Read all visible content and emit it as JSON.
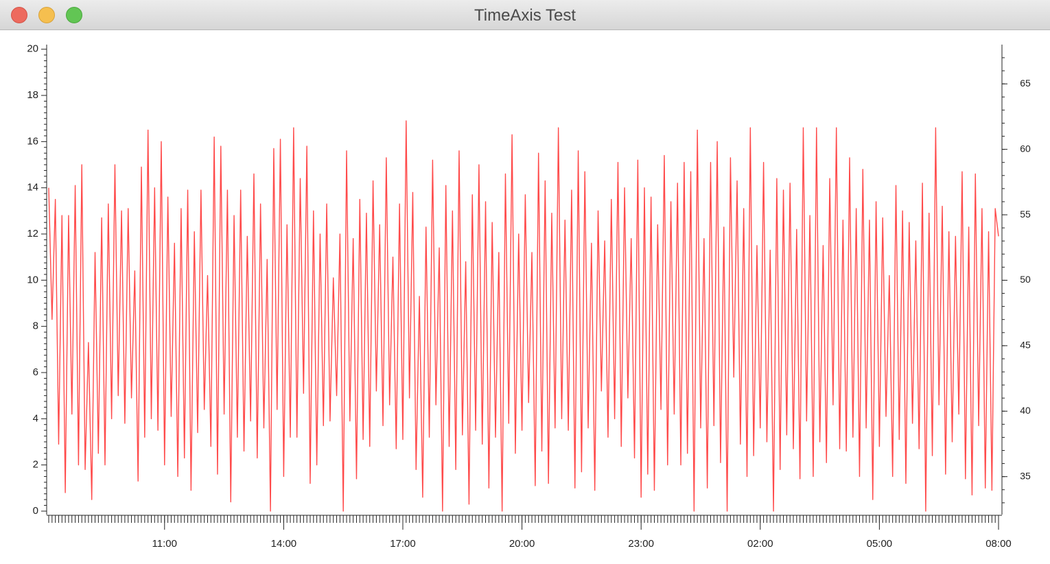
{
  "window_title": "TimeAxis Test",
  "chart_data": {
    "type": "line",
    "color": "#ff4a4a",
    "x": [
      "08:05",
      "08:10",
      "08:15",
      "08:20",
      "08:25",
      "08:30",
      "08:35",
      "08:40",
      "08:45",
      "08:50",
      "08:55",
      "09:00",
      "09:05",
      "09:10",
      "09:15",
      "09:20",
      "09:25",
      "09:30",
      "09:35",
      "09:40",
      "09:45",
      "09:50",
      "09:55",
      "10:00",
      "10:05",
      "10:10",
      "10:15",
      "10:20",
      "10:25",
      "10:30",
      "10:35",
      "10:40",
      "10:45",
      "10:50",
      "10:55",
      "11:00",
      "11:05",
      "11:10",
      "11:15",
      "11:20",
      "11:25",
      "11:30",
      "11:35",
      "11:40",
      "11:45",
      "11:50",
      "11:55",
      "12:00",
      "12:05",
      "12:10",
      "12:15",
      "12:20",
      "12:25",
      "12:30",
      "12:35",
      "12:40",
      "12:45",
      "12:50",
      "12:55",
      "13:00",
      "13:05",
      "13:10",
      "13:15",
      "13:20",
      "13:25",
      "13:30",
      "13:35",
      "13:40",
      "13:45",
      "13:50",
      "13:55",
      "14:00",
      "14:05",
      "14:10",
      "14:15",
      "14:20",
      "14:25",
      "14:30",
      "14:35",
      "14:40",
      "14:45",
      "14:50",
      "14:55",
      "15:00",
      "15:05",
      "15:10",
      "15:15",
      "15:20",
      "15:25",
      "15:30",
      "15:35",
      "15:40",
      "15:45",
      "15:50",
      "15:55",
      "16:00",
      "16:05",
      "16:10",
      "16:15",
      "16:20",
      "16:25",
      "16:30",
      "16:35",
      "16:40",
      "16:45",
      "16:50",
      "16:55",
      "17:00",
      "17:05",
      "17:10",
      "17:15",
      "17:20",
      "17:25",
      "17:30",
      "17:35",
      "17:40",
      "17:45",
      "17:50",
      "17:55",
      "18:00",
      "18:05",
      "18:10",
      "18:15",
      "18:20",
      "18:25",
      "18:30",
      "18:35",
      "18:40",
      "18:45",
      "18:50",
      "18:55",
      "19:00",
      "19:05",
      "19:10",
      "19:15",
      "19:20",
      "19:25",
      "19:30",
      "19:35",
      "19:40",
      "19:45",
      "19:50",
      "19:55",
      "20:00",
      "20:05",
      "20:10",
      "20:15",
      "20:20",
      "20:25",
      "20:30",
      "20:35",
      "20:40",
      "20:45",
      "20:50",
      "20:55",
      "21:00",
      "21:05",
      "21:10",
      "21:15",
      "21:20",
      "21:25",
      "21:30",
      "21:35",
      "21:40",
      "21:45",
      "21:50",
      "21:55",
      "22:00",
      "22:05",
      "22:10",
      "22:15",
      "22:20",
      "22:25",
      "22:30",
      "22:35",
      "22:40",
      "22:45",
      "22:50",
      "22:55",
      "23:00",
      "23:05",
      "23:10",
      "23:15",
      "23:20",
      "23:25",
      "23:30",
      "23:35",
      "23:40",
      "23:45",
      "23:50",
      "23:55",
      "00:00",
      "00:05",
      "00:10",
      "00:15",
      "00:20",
      "00:25",
      "00:30",
      "00:35",
      "00:40",
      "00:45",
      "00:50",
      "00:55",
      "01:00",
      "01:05",
      "01:10",
      "01:15",
      "01:20",
      "01:25",
      "01:30",
      "01:35",
      "01:40",
      "01:45",
      "01:50",
      "01:55",
      "02:00",
      "02:05",
      "02:10",
      "02:15",
      "02:20",
      "02:25",
      "02:30",
      "02:35",
      "02:40",
      "02:45",
      "02:50",
      "02:55",
      "03:00",
      "03:05",
      "03:10",
      "03:15",
      "03:20",
      "03:25",
      "03:30",
      "03:35",
      "03:40",
      "03:45",
      "03:50",
      "03:55",
      "04:00",
      "04:05",
      "04:10",
      "04:15",
      "04:20",
      "04:25",
      "04:30",
      "04:35",
      "04:40",
      "04:45",
      "04:50",
      "04:55",
      "05:00",
      "05:05",
      "05:10",
      "05:15",
      "05:20",
      "05:25",
      "05:30",
      "05:35",
      "05:40",
      "05:45",
      "05:50",
      "05:55",
      "06:00",
      "06:05",
      "06:10",
      "06:15",
      "06:20",
      "06:25",
      "06:30",
      "06:35",
      "06:40",
      "06:45",
      "06:50",
      "06:55",
      "07:00",
      "07:05",
      "07:10",
      "07:15",
      "07:20",
      "07:25",
      "07:30",
      "07:35",
      "07:40",
      "07:45",
      "07:50",
      "07:55",
      "08:00"
    ],
    "values": [
      14.0,
      8.3,
      13.5,
      2.9,
      12.8,
      0.8,
      12.8,
      4.2,
      14.1,
      2.0,
      15.0,
      1.8,
      7.3,
      0.5,
      11.2,
      2.5,
      12.7,
      2.0,
      13.3,
      4.0,
      15.0,
      5.0,
      13.0,
      3.8,
      13.1,
      4.9,
      10.4,
      1.3,
      14.9,
      3.2,
      16.5,
      4.0,
      14.0,
      3.5,
      16.0,
      2.0,
      13.6,
      4.1,
      11.6,
      1.5,
      13.1,
      2.3,
      13.9,
      0.9,
      12.1,
      3.4,
      13.9,
      4.4,
      10.2,
      2.8,
      16.2,
      1.6,
      15.8,
      4.2,
      13.9,
      0.4,
      12.8,
      3.2,
      13.9,
      2.6,
      11.9,
      3.9,
      14.6,
      2.3,
      13.3,
      3.6,
      10.9,
      0.0,
      15.7,
      4.4,
      16.1,
      1.5,
      12.4,
      3.2,
      16.6,
      3.2,
      14.4,
      5.1,
      15.8,
      1.2,
      13.0,
      2.0,
      12.0,
      3.7,
      13.3,
      3.9,
      10.1,
      5.0,
      12.0,
      0.0,
      15.6,
      3.9,
      11.8,
      1.4,
      13.5,
      3.1,
      12.9,
      2.8,
      14.3,
      5.2,
      12.4,
      3.7,
      15.3,
      4.6,
      11.0,
      2.7,
      13.3,
      3.1,
      16.9,
      4.9,
      13.8,
      1.8,
      9.3,
      0.6,
      12.3,
      3.2,
      15.2,
      4.6,
      11.4,
      0.0,
      14.1,
      2.8,
      13.0,
      1.8,
      15.6,
      3.3,
      10.8,
      0.3,
      13.7,
      3.5,
      15.0,
      2.9,
      13.4,
      1.0,
      12.5,
      3.2,
      11.2,
      0.0,
      14.6,
      3.8,
      16.3,
      2.5,
      12.0,
      3.5,
      13.7,
      4.7,
      11.2,
      1.1,
      15.5,
      2.6,
      14.3,
      1.2,
      12.9,
      3.6,
      16.6,
      4.0,
      12.6,
      3.5,
      13.9,
      1.0,
      15.6,
      1.7,
      14.7,
      3.6,
      11.6,
      0.9,
      13.0,
      5.2,
      11.7,
      3.2,
      13.5,
      4.0,
      15.1,
      2.8,
      14.0,
      4.9,
      11.8,
      2.3,
      15.2,
      0.6,
      14.0,
      1.6,
      13.6,
      0.9,
      12.4,
      4.4,
      15.4,
      2.0,
      13.4,
      4.2,
      14.2,
      2.0,
      15.1,
      2.5,
      14.7,
      0.0,
      16.5,
      3.6,
      11.8,
      1.0,
      15.1,
      3.7,
      16.0,
      2.1,
      12.3,
      0.0,
      15.3,
      5.8,
      14.3,
      2.9,
      13.1,
      1.5,
      16.6,
      2.4,
      11.5,
      3.6,
      15.1,
      3.0,
      11.3,
      0.0,
      14.4,
      1.8,
      13.9,
      3.3,
      14.2,
      2.7,
      12.2,
      1.4,
      16.6,
      3.9,
      12.8,
      1.5,
      16.6,
      3.0,
      11.5,
      2.1,
      14.4,
      4.6,
      16.6,
      2.7,
      12.6,
      2.6,
      15.3,
      3.2,
      13.1,
      1.5,
      14.8,
      3.6,
      12.6,
      0.5,
      13.4,
      2.8,
      12.7,
      4.1,
      10.2,
      1.5,
      14.1,
      3.1,
      13.0,
      1.2,
      12.5,
      3.8,
      11.7,
      2.7,
      14.2,
      0.0,
      12.9,
      2.4,
      16.6,
      4.6,
      13.2,
      1.6,
      12.1,
      3.0,
      11.9,
      4.2,
      14.7,
      1.4,
      12.3,
      0.7,
      14.6,
      3.7,
      13.1,
      1.0,
      12.1,
      0.9,
      13.1,
      11.9
    ],
    "xticks": [
      "11:00",
      "14:00",
      "17:00",
      "20:00",
      "23:00",
      "02:00",
      "05:00",
      "08:00"
    ],
    "ylim": [
      -0.15,
      20.2
    ],
    "yticks": [
      0,
      2,
      4,
      6,
      8,
      10,
      12,
      14,
      16,
      18,
      20
    ],
    "y2lim": [
      32.1,
      68
    ],
    "y2ticks": [
      35,
      40,
      45,
      50,
      55,
      60,
      65
    ]
  }
}
